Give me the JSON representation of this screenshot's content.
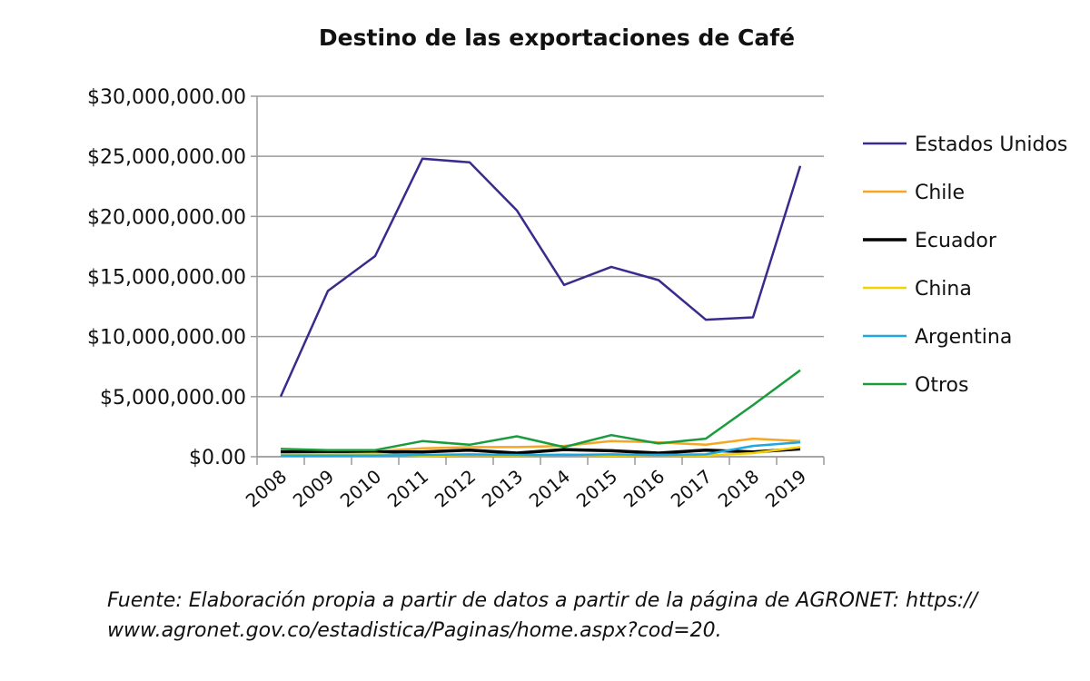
{
  "chart_data": {
    "type": "line",
    "title": "Destino de las exportaciones de Café",
    "xlabel": "",
    "ylabel": "",
    "categories": [
      "2008",
      "2009",
      "2010",
      "2011",
      "2012",
      "2013",
      "2014",
      "2015",
      "2016",
      "2017",
      "2018",
      "2019"
    ],
    "ylim": [
      0,
      30000000
    ],
    "y_ticks": [
      0,
      5000000,
      10000000,
      15000000,
      20000000,
      25000000,
      30000000
    ],
    "y_tick_labels": [
      "$0.00",
      "$5,000,000.00",
      "$10,000,000.00",
      "$15,000,000.00",
      "$20,000,000.00",
      "$25,000,000.00",
      "$30,000,000.00"
    ],
    "grid": true,
    "legend_position": "right",
    "series": [
      {
        "name": "Estados Unidos",
        "color": "#3b2a8c",
        "values": [
          5000000,
          13800000,
          16700000,
          24800000,
          24500000,
          20500000,
          14300000,
          15800000,
          14700000,
          11400000,
          11600000,
          24200000
        ]
      },
      {
        "name": "Chile",
        "color": "#f5a623",
        "values": [
          300000,
          400000,
          450000,
          700000,
          800000,
          800000,
          900000,
          1300000,
          1200000,
          1000000,
          1500000,
          1300000
        ]
      },
      {
        "name": "Ecuador",
        "color": "#000000",
        "values": [
          400000,
          450000,
          400000,
          400000,
          550000,
          300000,
          600000,
          500000,
          300000,
          550000,
          400000,
          650000
        ]
      },
      {
        "name": "China",
        "color": "#f5d100",
        "values": [
          200000,
          200000,
          250000,
          50000,
          150000,
          100000,
          200000,
          100000,
          150000,
          100000,
          300000,
          800000
        ]
      },
      {
        "name": "Argentina",
        "color": "#1ea7e1",
        "values": [
          100000,
          100000,
          100000,
          150000,
          200000,
          150000,
          150000,
          200000,
          150000,
          200000,
          900000,
          1200000
        ]
      },
      {
        "name": "Otros",
        "color": "#1a9b3c",
        "values": [
          650000,
          550000,
          550000,
          1300000,
          1000000,
          1700000,
          800000,
          1800000,
          1100000,
          1500000,
          4300000,
          7200000
        ]
      }
    ]
  },
  "source_note": {
    "line1": "Fuente: Elaboración propia a partir de datos a partir de la página de AGRONET: https://",
    "line2": "www.agronet.gov.co/estadistica/Paginas/home.aspx?cod=20."
  }
}
